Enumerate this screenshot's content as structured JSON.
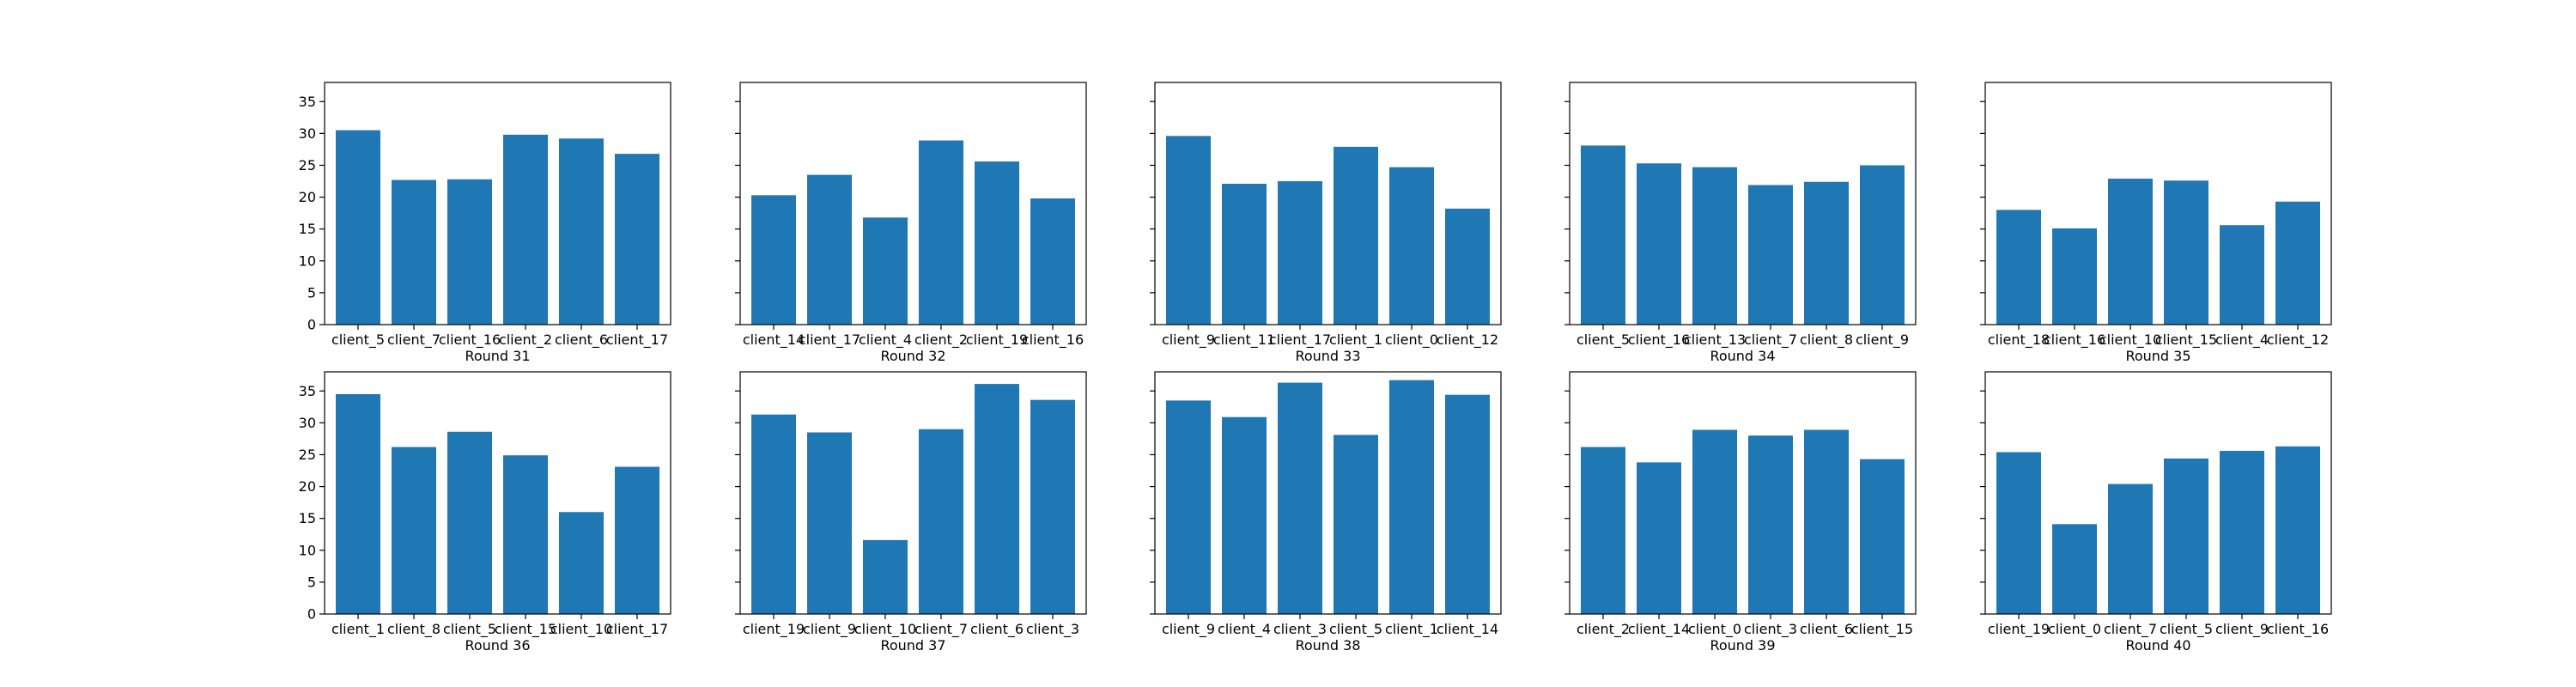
{
  "chart_data": [
    {
      "type": "bar",
      "xlabel": "Round 31",
      "categories": [
        "client_5",
        "client_7",
        "client_16",
        "client_2",
        "client_6",
        "client_17"
      ],
      "values": [
        30.5,
        22.7,
        22.8,
        29.8,
        29.2,
        26.8
      ],
      "ylim": [
        0,
        38
      ],
      "yticks": [
        0,
        5,
        10,
        15,
        20,
        25,
        30,
        35
      ],
      "color": "#1f77b4"
    },
    {
      "type": "bar",
      "xlabel": "Round 32",
      "categories": [
        "client_14",
        "client_17",
        "client_4",
        "client_2",
        "client_19",
        "client_16"
      ],
      "values": [
        20.3,
        23.5,
        16.8,
        28.9,
        25.6,
        19.8
      ],
      "ylim": [
        0,
        38
      ],
      "yticks": [
        0,
        5,
        10,
        15,
        20,
        25,
        30,
        35
      ],
      "color": "#1f77b4"
    },
    {
      "type": "bar",
      "xlabel": "Round 33",
      "categories": [
        "client_9",
        "client_11",
        "client_17",
        "client_1",
        "client_0",
        "client_12"
      ],
      "values": [
        29.6,
        22.1,
        22.5,
        27.9,
        24.7,
        18.2
      ],
      "ylim": [
        0,
        38
      ],
      "yticks": [
        0,
        5,
        10,
        15,
        20,
        25,
        30,
        35
      ],
      "color": "#1f77b4"
    },
    {
      "type": "bar",
      "xlabel": "Round 34",
      "categories": [
        "client_5",
        "client_16",
        "client_13",
        "client_7",
        "client_8",
        "client_9"
      ],
      "values": [
        28.1,
        25.3,
        24.7,
        21.9,
        22.4,
        25.0
      ],
      "ylim": [
        0,
        38
      ],
      "yticks": [
        0,
        5,
        10,
        15,
        20,
        25,
        30,
        35
      ],
      "color": "#1f77b4"
    },
    {
      "type": "bar",
      "xlabel": "Round 35",
      "categories": [
        "client_18",
        "client_16",
        "client_10",
        "client_15",
        "client_4",
        "client_12"
      ],
      "values": [
        18.0,
        15.1,
        22.9,
        22.6,
        15.6,
        19.3
      ],
      "ylim": [
        0,
        38
      ],
      "yticks": [
        0,
        5,
        10,
        15,
        20,
        25,
        30,
        35
      ],
      "color": "#1f77b4"
    },
    {
      "type": "bar",
      "xlabel": "Round 36",
      "categories": [
        "client_1",
        "client_8",
        "client_5",
        "client_15",
        "client_10",
        "client_17"
      ],
      "values": [
        34.5,
        26.2,
        28.6,
        24.9,
        16.0,
        23.1
      ],
      "ylim": [
        0,
        38
      ],
      "yticks": [
        0,
        5,
        10,
        15,
        20,
        25,
        30,
        35
      ],
      "color": "#1f77b4"
    },
    {
      "type": "bar",
      "xlabel": "Round 37",
      "categories": [
        "client_19",
        "client_9",
        "client_10",
        "client_7",
        "client_6",
        "client_3"
      ],
      "values": [
        31.3,
        28.5,
        11.6,
        29.0,
        36.1,
        33.6
      ],
      "ylim": [
        0,
        38
      ],
      "yticks": [
        0,
        5,
        10,
        15,
        20,
        25,
        30,
        35
      ],
      "color": "#1f77b4"
    },
    {
      "type": "bar",
      "xlabel": "Round 38",
      "categories": [
        "client_9",
        "client_4",
        "client_3",
        "client_5",
        "client_1",
        "client_14"
      ],
      "values": [
        33.5,
        30.9,
        36.3,
        28.1,
        36.7,
        34.4
      ],
      "ylim": [
        0,
        38
      ],
      "yticks": [
        0,
        5,
        10,
        15,
        20,
        25,
        30,
        35
      ],
      "color": "#1f77b4"
    },
    {
      "type": "bar",
      "xlabel": "Round 39",
      "categories": [
        "client_2",
        "client_14",
        "client_0",
        "client_3",
        "client_6",
        "client_15"
      ],
      "values": [
        26.2,
        23.8,
        28.9,
        28.0,
        28.9,
        24.3
      ],
      "ylim": [
        0,
        38
      ],
      "yticks": [
        0,
        5,
        10,
        15,
        20,
        25,
        30,
        35
      ],
      "color": "#1f77b4"
    },
    {
      "type": "bar",
      "xlabel": "Round 40",
      "categories": [
        "client_19",
        "client_0",
        "client_7",
        "client_5",
        "client_9",
        "client_16"
      ],
      "values": [
        25.4,
        14.1,
        20.4,
        24.4,
        25.6,
        26.3
      ],
      "ylim": [
        0,
        38
      ],
      "yticks": [
        0,
        5,
        10,
        15,
        20,
        25,
        30,
        35
      ],
      "color": "#1f77b4"
    }
  ]
}
